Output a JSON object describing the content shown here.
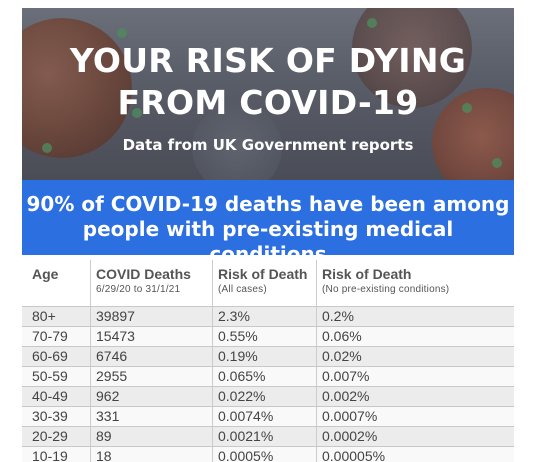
{
  "hero": {
    "title_line1": "YOUR RISK OF DYING",
    "title_line2": "FROM COVID-19",
    "subtitle": "Data from UK Government reports"
  },
  "banner": {
    "line1": "90% of COVID-19 deaths have been among",
    "line2": "people with pre-existing medical conditions"
  },
  "table": {
    "headers": [
      {
        "main": "Age",
        "sub": ""
      },
      {
        "main": "COVID Deaths",
        "sub": "6/29/20 to 31/1/21"
      },
      {
        "main": "Risk of Death",
        "sub": "(All cases)"
      },
      {
        "main": "Risk of Death",
        "sub": "(No pre-existing conditions)"
      }
    ],
    "rows": [
      [
        "80+",
        "39897",
        "2.3%",
        "0.2%"
      ],
      [
        "70-79",
        "15473",
        "0.55%",
        "0.06%"
      ],
      [
        "60-69",
        "6746",
        "0.19%",
        "0.02%"
      ],
      [
        "50-59",
        "2955",
        "0.065%",
        "0.007%"
      ],
      [
        "40-49",
        "962",
        "0.022%",
        "0.002%"
      ],
      [
        "30-39",
        "331",
        "0.0074%",
        "0.0007%"
      ],
      [
        "20-29",
        "89",
        "0.0021%",
        "0.0002%"
      ],
      [
        "10-19",
        "18",
        "0.0005%",
        "0.00005%"
      ]
    ]
  },
  "colors": {
    "banner_blue": "#2c6fe0",
    "hero_gray": "#5a5e69"
  }
}
